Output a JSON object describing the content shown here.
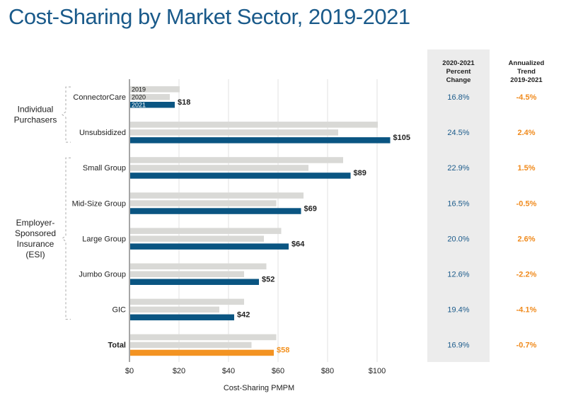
{
  "title": "Cost-Sharing by Market Sector, 2019-2021",
  "colors": {
    "y2019": "#d9d9d6",
    "y2020": "#d9d9d6",
    "y2021": "#0a5582",
    "total2021": "#f39322",
    "pct": "#1a5a8a",
    "trend": "#f08a1c",
    "panel": "#ececec"
  },
  "chart_data": {
    "type": "bar",
    "orientation": "horizontal",
    "xlabel": "Cost-Sharing PMPM",
    "xlim": [
      0,
      105
    ],
    "xticks": [
      "$0",
      "$20",
      "$40",
      "$60",
      "$80",
      "$100"
    ],
    "xtick_values": [
      0,
      20,
      40,
      60,
      80,
      100
    ],
    "grid": true,
    "series_labels": [
      "2019",
      "2020",
      "2021"
    ],
    "groups": [
      {
        "label": "Individual Purchasers",
        "span": [
          0,
          1
        ]
      },
      {
        "label": "Employer-Sponsored Insurance (ESI)",
        "span": [
          2,
          6
        ]
      }
    ],
    "categories": [
      "ConnectorCare",
      "Unsubsidized",
      "Small Group",
      "Mid-Size Group",
      "Large Group",
      "Jumbo Group",
      "GIC",
      "Total"
    ],
    "series": [
      {
        "name": "2019",
        "values": [
          20,
          100,
          86,
          70,
          61,
          55,
          46,
          59
        ]
      },
      {
        "name": "2020",
        "values": [
          16,
          84,
          72,
          59,
          54,
          46,
          36,
          49
        ]
      },
      {
        "name": "2021",
        "values": [
          18,
          105,
          89,
          69,
          64,
          52,
          42,
          58
        ]
      }
    ],
    "data_labels": [
      "$18",
      "$105",
      "$89",
      "$69",
      "$64",
      "$52",
      "$42",
      "$58"
    ],
    "table": {
      "col1_header": [
        "2020-2021",
        "Percent",
        "Change"
      ],
      "col2_header": [
        "Annualized",
        "Trend",
        "2019-2021"
      ],
      "pct_change": [
        "16.8%",
        "24.5%",
        "22.9%",
        "16.5%",
        "20.0%",
        "12.6%",
        "19.4%",
        "16.9%"
      ],
      "trend": [
        "-4.5%",
        "2.4%",
        "1.5%",
        "-0.5%",
        "2.6%",
        "-2.2%",
        "-4.1%",
        "-0.7%"
      ]
    }
  }
}
